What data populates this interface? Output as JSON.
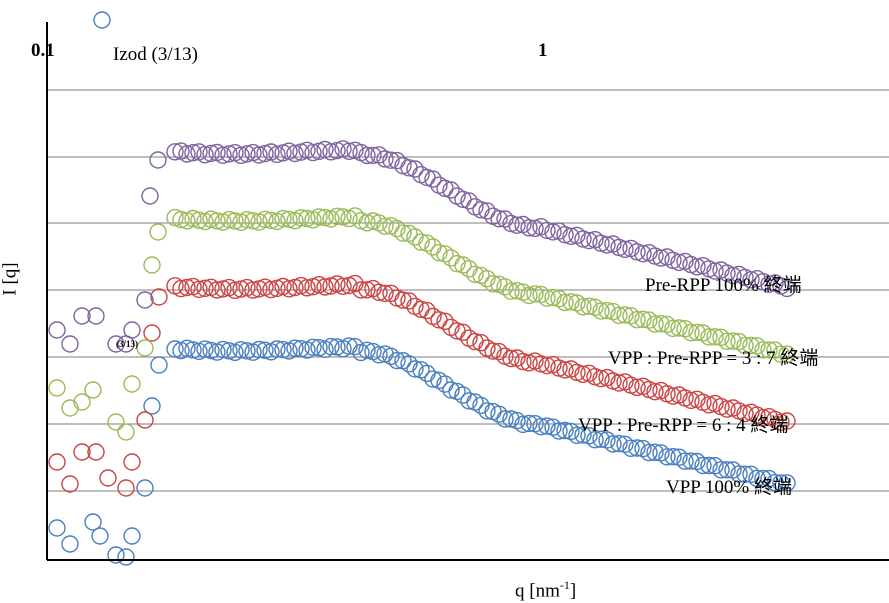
{
  "chart_data": {
    "type": "scatter",
    "title": "Izod (3/13)",
    "xlabel": "q [nm",
    "xlabel_sup": "-1",
    "xlabel_end": "]",
    "ylabel": "I [q]",
    "x_scale": "log",
    "x_ticks": [
      "0.1",
      "1"
    ],
    "grid": "horizontal",
    "annotation": "(3/13)",
    "series": [
      {
        "name": "VPP 100% 終端",
        "color": "#4a7fc1"
      },
      {
        "name": "VPP : Pre-RPP = 6 : 4 終端",
        "color": "#cc4444"
      },
      {
        "name": "VPP : Pre-RPP = 3 : 7 終端",
        "color": "#9bbb59"
      },
      {
        "name": "Pre-RPP 100% 終端",
        "color": "#8064a2"
      }
    ]
  }
}
